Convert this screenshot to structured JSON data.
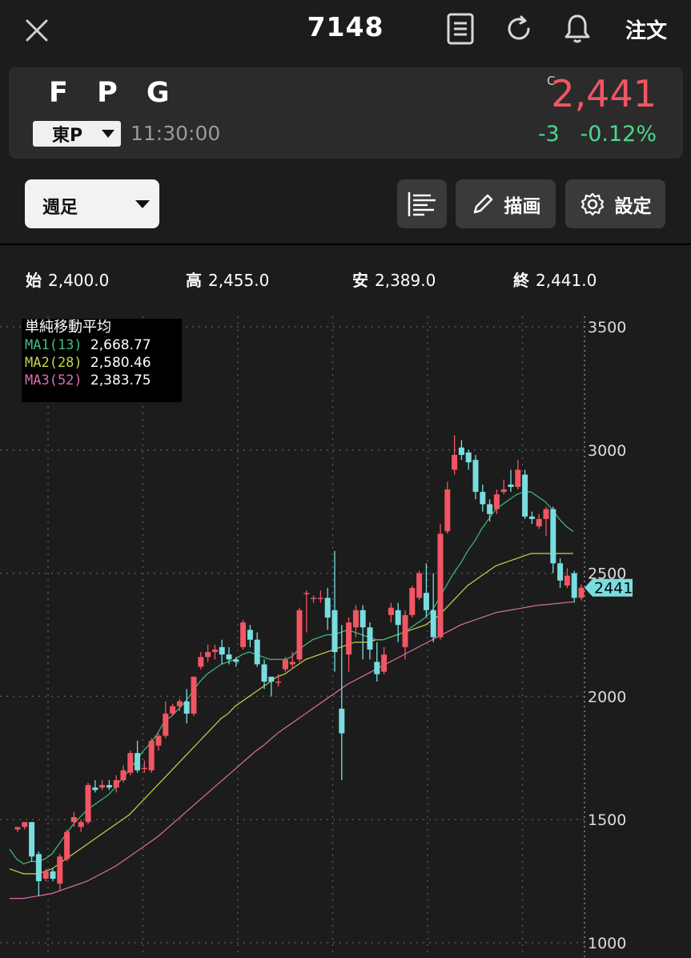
{
  "header": {
    "code": "7148",
    "order_label": "注文"
  },
  "icons": {
    "close": "close-icon",
    "document": "document-icon",
    "refresh": "refresh-icon",
    "bell": "bell-icon",
    "settings": "gear-icon",
    "pencil": "pencil-icon",
    "align": "align-icon"
  },
  "quote": {
    "name": "F P G",
    "market": "東P",
    "time": "11:30:00",
    "marker": "C",
    "price": "2,441",
    "change": "-3   -0.12%"
  },
  "toolbar": {
    "period": "週足",
    "draw_label": "描画",
    "settings_label": "設定"
  },
  "ohlc": {
    "open_label": "始",
    "open": "2,400.0",
    "high_label": "高",
    "high": "2,455.0",
    "low_label": "安",
    "low": "2,389.0",
    "close_label": "終",
    "close": "2,441.0"
  },
  "ma_legend": {
    "title": "単純移動平均",
    "items": [
      {
        "label": "MA1(13)",
        "value": "2,668.77",
        "color": "#3fbf7f"
      },
      {
        "label": "MA2(28)",
        "value": "2,580.46",
        "color": "#c8d44a"
      },
      {
        "label": "MA3(52)",
        "value": "2,383.75",
        "color": "#d96fae"
      }
    ]
  },
  "colors": {
    "up": "#f25563",
    "down": "#79dde0",
    "ma1": "#3fbf7f",
    "ma2": "#c8d44a",
    "ma3": "#d96fae"
  },
  "chart_data": {
    "type": "candlestick",
    "y_axis": {
      "ticks": [
        "3500",
        "3000",
        "2500",
        "2000",
        "1500",
        "1000"
      ],
      "ylim": [
        1000,
        3500
      ]
    },
    "current_price_label": "2441",
    "candles": [
      [
        1460,
        1470,
        1450,
        1460
      ],
      [
        1470,
        1490,
        1460,
        1470
      ],
      [
        1490,
        1350,
        1330,
        1480
      ],
      [
        1360,
        1250,
        1190,
        1370
      ],
      [
        1260,
        1290,
        1250,
        1300
      ],
      [
        1290,
        1260,
        1250,
        1300
      ],
      [
        1240,
        1350,
        1210,
        1360
      ],
      [
        1340,
        1450,
        1330,
        1460
      ],
      [
        1490,
        1510,
        1470,
        1530
      ],
      [
        1470,
        1490,
        1450,
        1500
      ],
      [
        1490,
        1640,
        1480,
        1650
      ],
      [
        1630,
        1620,
        1610,
        1660
      ],
      [
        1630,
        1640,
        1620,
        1660
      ],
      [
        1640,
        1630,
        1620,
        1660
      ],
      [
        1630,
        1660,
        1610,
        1680
      ],
      [
        1660,
        1700,
        1650,
        1720
      ],
      [
        1690,
        1770,
        1680,
        1780
      ],
      [
        1770,
        1700,
        1690,
        1820
      ],
      [
        1710,
        1710,
        1690,
        1740
      ],
      [
        1700,
        1820,
        1690,
        1830
      ],
      [
        1800,
        1840,
        1780,
        1850
      ],
      [
        1840,
        1930,
        1830,
        1980
      ],
      [
        1930,
        1960,
        1920,
        1970
      ],
      [
        1960,
        1980,
        1940,
        1990
      ],
      [
        1980,
        1930,
        1890,
        2030
      ],
      [
        1930,
        2080,
        1920,
        2080
      ],
      [
        2120,
        2160,
        2110,
        2180
      ],
      [
        2160,
        2180,
        2140,
        2210
      ],
      [
        2180,
        2190,
        2150,
        2210
      ],
      [
        2200,
        2170,
        2130,
        2230
      ],
      [
        2170,
        2150,
        2130,
        2200
      ],
      [
        2150,
        2140,
        2120,
        2160
      ],
      [
        2200,
        2300,
        2190,
        2310
      ],
      [
        2270,
        2230,
        2200,
        2290
      ],
      [
        2230,
        2130,
        2120,
        2260
      ],
      [
        2130,
        2060,
        2030,
        2150
      ],
      [
        2080,
        2060,
        2000,
        2070
      ],
      [
        2060,
        2060,
        2040,
        2090
      ],
      [
        2110,
        2150,
        2100,
        2160
      ],
      [
        2130,
        2140,
        2110,
        2180
      ],
      [
        2150,
        2350,
        2140,
        2360
      ],
      [
        2420,
        2420,
        2260,
        2430
      ],
      [
        2400,
        2400,
        2380,
        2410
      ],
      [
        2400,
        2400,
        2380,
        2430
      ],
      [
        2400,
        2320,
        2270,
        2440
      ],
      [
        2350,
        2180,
        2100,
        2590
      ],
      [
        1950,
        1850,
        1660,
        2290
      ],
      [
        2170,
        2300,
        2100,
        2320
      ],
      [
        2280,
        2350,
        2240,
        2370
      ],
      [
        2350,
        2280,
        2150,
        2370
      ],
      [
        2280,
        2190,
        2150,
        2300
      ],
      [
        2140,
        2090,
        2060,
        2220
      ],
      [
        2100,
        2170,
        2090,
        2200
      ],
      [
        2330,
        2360,
        2300,
        2380
      ],
      [
        2350,
        2290,
        2220,
        2380
      ],
      [
        2200,
        2330,
        2150,
        2350
      ],
      [
        2330,
        2440,
        2320,
        2450
      ],
      [
        2400,
        2500,
        2390,
        2510
      ],
      [
        2420,
        2350,
        2320,
        2540
      ],
      [
        2350,
        2240,
        2220,
        2500
      ],
      [
        2240,
        2660,
        2230,
        2700
      ],
      [
        2670,
        2840,
        2660,
        2870
      ],
      [
        2920,
        2980,
        2900,
        3060
      ],
      [
        3010,
        2980,
        2960,
        3040
      ],
      [
        2990,
        2950,
        2920,
        3000
      ],
      [
        2960,
        2830,
        2800,
        2980
      ],
      [
        2830,
        2780,
        2750,
        2860
      ],
      [
        2780,
        2740,
        2710,
        2800
      ],
      [
        2760,
        2820,
        2740,
        2840
      ],
      [
        2830,
        2840,
        2820,
        2880
      ],
      [
        2860,
        2850,
        2830,
        2920
      ],
      [
        2850,
        2920,
        2840,
        2960
      ],
      [
        2900,
        2730,
        2720,
        2920
      ],
      [
        2730,
        2720,
        2700,
        2750
      ],
      [
        2690,
        2720,
        2680,
        2740
      ],
      [
        2720,
        2760,
        2650,
        2770
      ],
      [
        2760,
        2540,
        2500,
        2770
      ],
      [
        2540,
        2470,
        2440,
        2560
      ],
      [
        2450,
        2490,
        2440,
        2520
      ],
      [
        2500,
        2400,
        2380,
        2510
      ],
      [
        2400,
        2441,
        2389,
        2455
      ]
    ],
    "ma1": [
      1380,
      1340,
      1320,
      1330,
      1330,
      1340,
      1360,
      1400,
      1440,
      1480,
      1510,
      1540,
      1560,
      1580,
      1600,
      1630,
      1670,
      1700,
      1740,
      1780,
      1810,
      1850,
      1900,
      1920,
      1950,
      1980,
      2020,
      2060,
      2090,
      2110,
      2130,
      2140,
      2150,
      2170,
      2180,
      2170,
      2160,
      2150,
      2150,
      2150,
      2160,
      2190,
      2210,
      2230,
      2240,
      2250,
      2250,
      2260,
      2270,
      2260,
      2250,
      2240,
      2230,
      2230,
      2240,
      2250,
      2260,
      2280,
      2300,
      2320,
      2350,
      2400,
      2450,
      2500,
      2540,
      2590,
      2630,
      2680,
      2720,
      2760,
      2780,
      2800,
      2820,
      2830,
      2830,
      2810,
      2790,
      2760,
      2720,
      2690,
      2668.77
    ],
    "ma2": [
      1300,
      1290,
      1280,
      1280,
      1280,
      1290,
      1300,
      1320,
      1340,
      1360,
      1380,
      1400,
      1420,
      1440,
      1460,
      1480,
      1500,
      1520,
      1550,
      1580,
      1610,
      1640,
      1670,
      1700,
      1730,
      1760,
      1790,
      1820,
      1850,
      1880,
      1910,
      1930,
      1960,
      1980,
      2000,
      2020,
      2040,
      2060,
      2080,
      2090,
      2110,
      2130,
      2150,
      2160,
      2170,
      2180,
      2190,
      2200,
      2210,
      2220,
      2220,
      2220,
      2230,
      2230,
      2240,
      2250,
      2260,
      2270,
      2280,
      2290,
      2310,
      2330,
      2360,
      2390,
      2420,
      2450,
      2470,
      2490,
      2510,
      2530,
      2540,
      2550,
      2560,
      2570,
      2580,
      2580,
      2580,
      2580,
      2580,
      2580,
      2580.46
    ],
    "ma3": [
      1180,
      1180,
      1180,
      1185,
      1190,
      1195,
      1200,
      1210,
      1220,
      1230,
      1240,
      1250,
      1265,
      1280,
      1295,
      1310,
      1330,
      1350,
      1370,
      1390,
      1410,
      1430,
      1455,
      1480,
      1505,
      1530,
      1555,
      1580,
      1605,
      1630,
      1655,
      1680,
      1705,
      1730,
      1755,
      1780,
      1800,
      1825,
      1850,
      1870,
      1890,
      1910,
      1930,
      1950,
      1970,
      1990,
      2010,
      2030,
      2050,
      2065,
      2080,
      2095,
      2110,
      2125,
      2140,
      2155,
      2170,
      2185,
      2200,
      2215,
      2230,
      2245,
      2260,
      2275,
      2290,
      2300,
      2310,
      2320,
      2330,
      2340,
      2345,
      2350,
      2355,
      2360,
      2365,
      2370,
      2372,
      2375,
      2378,
      2381,
      2383.75
    ]
  }
}
